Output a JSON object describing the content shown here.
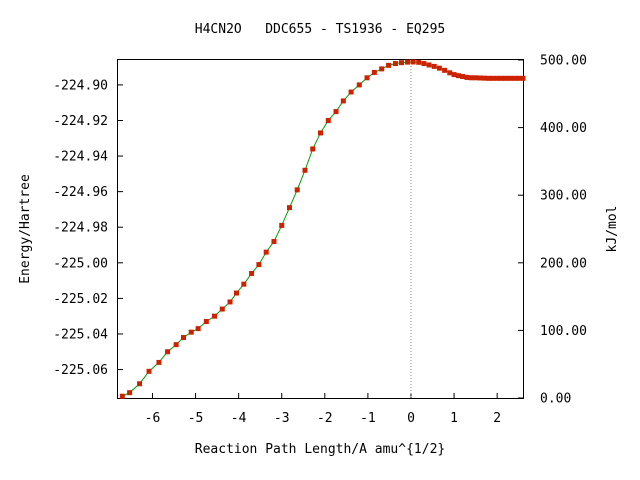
{
  "chart_data": {
    "type": "scatter",
    "title": "H4CN2O   DDC655 - TS1936 - EQ295",
    "xlabel": "Reaction Path Length/A amu^{1/2}",
    "ylabel_left": "Energy/Hartree",
    "ylabel_right": "kJ/mol",
    "xlim": [
      -6.8,
      2.6
    ],
    "ylim": [
      -225.076,
      -224.886
    ],
    "ylim_right": [
      0.0,
      500.0
    ],
    "x_ticks": [
      "-6",
      "-5",
      "-4",
      "-3",
      "-2",
      "-1",
      "0",
      "1",
      "2"
    ],
    "y_ticks_left": [
      "-224.90",
      "-224.92",
      "-224.94",
      "-224.96",
      "-224.98",
      "-225.00",
      "-225.02",
      "-225.04",
      "-225.06"
    ],
    "y_ticks_right": [
      "500.00",
      "400.00",
      "300.00",
      "200.00",
      "100.00",
      "0.00"
    ],
    "grid": false,
    "ts_marker_x": 0.0,
    "colors": {
      "curve": "#00a000",
      "points": "#cc2200",
      "ts_line": "#888888"
    },
    "series": [
      {
        "x": [
          -6.7,
          -6.53,
          -6.3,
          -6.08,
          -5.85,
          -5.65,
          -5.45,
          -5.28,
          -5.1,
          -4.94,
          -4.75,
          -4.56,
          -4.38,
          -4.2,
          -4.05,
          -3.88,
          -3.7,
          -3.53,
          -3.36,
          -3.18,
          -3.0,
          -2.82,
          -2.64,
          -2.46,
          -2.28,
          -2.1,
          -1.92,
          -1.74,
          -1.57,
          -1.39,
          -1.2,
          -1.02,
          -0.85,
          -0.68,
          -0.52,
          -0.36,
          -0.22,
          -0.08,
          0.05,
          0.18,
          0.3,
          0.42,
          0.54,
          0.66,
          0.78,
          0.9,
          1.0,
          1.1,
          1.2,
          1.3,
          1.4,
          1.5,
          1.6,
          1.7,
          1.8,
          1.9,
          2.0,
          2.1,
          2.2,
          2.3,
          2.4,
          2.5,
          2.6
        ],
        "y": [
          -225.075,
          -225.073,
          -225.068,
          -225.061,
          -225.056,
          -225.05,
          -225.046,
          -225.042,
          -225.039,
          -225.037,
          -225.033,
          -225.03,
          -225.026,
          -225.022,
          -225.017,
          -225.012,
          -225.006,
          -225.001,
          -224.994,
          -224.988,
          -224.979,
          -224.969,
          -224.959,
          -224.948,
          -224.936,
          -224.927,
          -224.92,
          -224.915,
          -224.909,
          -224.904,
          -224.9,
          -224.896,
          -224.893,
          -224.891,
          -224.889,
          -224.888,
          -224.8875,
          -224.8872,
          -224.8871,
          -224.8873,
          -224.888,
          -224.8888,
          -224.8896,
          -224.8906,
          -224.8918,
          -224.8932,
          -224.8942,
          -224.8948,
          -224.8953,
          -224.8958,
          -224.896,
          -224.896,
          -224.8961,
          -224.8962,
          -224.8963,
          -224.8963,
          -224.8963,
          -224.8963,
          -224.8963,
          -224.8963,
          -224.8963,
          -224.8963,
          -224.8963
        ]
      }
    ]
  }
}
